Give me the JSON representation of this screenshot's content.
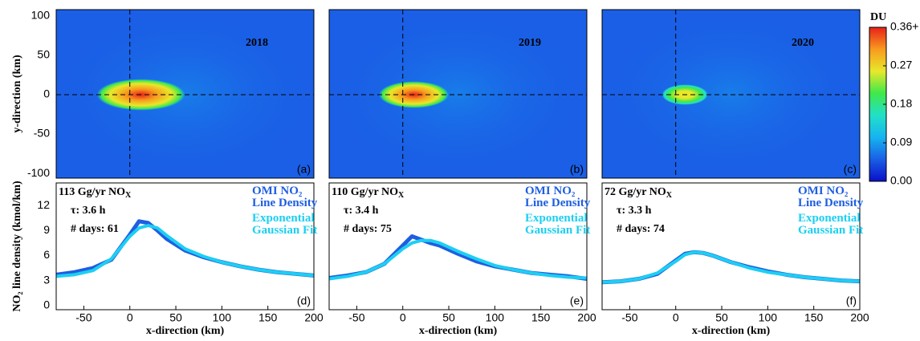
{
  "colorbar": {
    "title": "DU",
    "clim": [
      0,
      0.36
    ],
    "ticks": [
      {
        "value": 0,
        "label": "0.00"
      },
      {
        "value": 0.09,
        "label": "0.09"
      },
      {
        "value": 0.18,
        "label": "0.18"
      },
      {
        "value": 0.27,
        "label": "0.27"
      },
      {
        "value": 0.36,
        "label": "0.36+"
      }
    ],
    "colormap": [
      "#0a0fc8",
      "#1a5fe6",
      "#16b4f0",
      "#22e0c8",
      "#3ee84a",
      "#e8e82a",
      "#f89a1e",
      "#e8201a"
    ]
  },
  "chart_data": [
    {
      "type": "heatmap",
      "title": "2018",
      "panel": "(a)",
      "ylabel": "y-direction (km)",
      "xlim": [
        -80,
        200
      ],
      "ylim": [
        -106,
        108
      ],
      "yticks": [
        -100,
        -50,
        0,
        50,
        100
      ]
    },
    {
      "type": "heatmap",
      "title": "2019",
      "panel": "(b)",
      "xlim": [
        -80,
        200
      ],
      "ylim": [
        -106,
        108
      ]
    },
    {
      "type": "heatmap",
      "title": "2020",
      "panel": "(c)",
      "xlim": [
        -80,
        200
      ],
      "ylim": [
        -106,
        108
      ]
    },
    {
      "type": "line",
      "panel": "(d)",
      "flux": "113 Gg/yr NO",
      "flux_subscript": "X",
      "tau": "τ: 3.6 h",
      "days": "# days:  61",
      "ylabel": "NO₂ line density (kmol/km)",
      "xlabel": "x-direction (km)",
      "xlim": [
        -80,
        200
      ],
      "ylim": [
        -0.5,
        14.7
      ],
      "xticks": [
        -50,
        0,
        50,
        100,
        150,
        200
      ],
      "yticks": [
        0,
        3,
        6,
        9,
        12
      ],
      "x": [
        -80,
        -60,
        -40,
        -20,
        0,
        10,
        20,
        30,
        40,
        60,
        80,
        100,
        120,
        140,
        160,
        180,
        200
      ],
      "series": [
        {
          "name": "OMI NO₂ Line Density",
          "color": "#1e5ee0",
          "values": [
            3.7,
            4.0,
            4.5,
            5.5,
            8.5,
            10.1,
            9.9,
            9.0,
            8.0,
            6.6,
            5.8,
            5.2,
            4.7,
            4.3,
            4.0,
            3.8,
            3.6
          ]
        },
        {
          "name": "Exponential Gaussian Fit",
          "color": "#1ccff2",
          "values": [
            3.5,
            3.7,
            4.2,
            5.6,
            8.3,
            9.3,
            9.6,
            9.3,
            8.4,
            6.8,
            5.9,
            5.2,
            4.7,
            4.3,
            4.0,
            3.8,
            3.6
          ]
        }
      ]
    },
    {
      "type": "line",
      "panel": "(e)",
      "flux": "110 Gg/yr NO",
      "flux_subscript": "X",
      "tau": "τ: 3.4 h",
      "days": "# days:  75",
      "xlabel": "x-direction (km)",
      "xlim": [
        -80,
        200
      ],
      "ylim": [
        -0.5,
        14.7
      ],
      "xticks": [
        -50,
        0,
        50,
        100,
        150,
        200
      ],
      "x": [
        -80,
        -60,
        -40,
        -20,
        0,
        10,
        20,
        30,
        40,
        60,
        80,
        100,
        120,
        140,
        160,
        180,
        200
      ],
      "series": [
        {
          "name": "OMI NO₂ Line Density",
          "color": "#1e5ee0",
          "values": [
            3.3,
            3.6,
            4.0,
            5.0,
            7.2,
            8.3,
            7.9,
            7.5,
            7.2,
            6.2,
            5.3,
            4.7,
            4.3,
            3.9,
            3.7,
            3.5,
            3.2
          ]
        },
        {
          "name": "Exponential Gaussian Fit",
          "color": "#1ccff2",
          "values": [
            3.2,
            3.5,
            4.0,
            5.0,
            6.8,
            7.5,
            7.8,
            7.8,
            7.5,
            6.5,
            5.6,
            4.8,
            4.3,
            3.9,
            3.6,
            3.4,
            3.3
          ]
        }
      ]
    },
    {
      "type": "line",
      "panel": "(f)",
      "flux": "72 Gg/yr NO",
      "flux_subscript": "X",
      "tau": "τ: 3.3 h",
      "days": "# days:  74",
      "xlabel": "x-direction (km)",
      "xlim": [
        -80,
        200
      ],
      "ylim": [
        -0.5,
        14.7
      ],
      "xticks": [
        -50,
        0,
        50,
        100,
        150,
        200
      ],
      "x": [
        -80,
        -60,
        -40,
        -20,
        0,
        10,
        20,
        30,
        40,
        60,
        80,
        100,
        120,
        140,
        160,
        180,
        200
      ],
      "series": [
        {
          "name": "OMI NO₂ Line Density",
          "color": "#1e5ee0",
          "values": [
            2.8,
            2.9,
            3.2,
            3.8,
            5.4,
            6.2,
            6.4,
            6.3,
            6.0,
            5.2,
            4.6,
            4.1,
            3.7,
            3.4,
            3.2,
            3.0,
            2.9
          ]
        },
        {
          "name": "Exponential Gaussian Fit",
          "color": "#1ccff2",
          "values": [
            2.8,
            2.9,
            3.2,
            3.9,
            5.3,
            6.1,
            6.4,
            6.3,
            6.0,
            5.2,
            4.5,
            4.0,
            3.7,
            3.4,
            3.2,
            3.0,
            2.9
          ]
        }
      ]
    }
  ]
}
